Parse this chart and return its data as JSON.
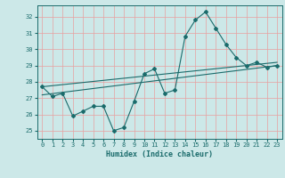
{
  "title": "",
  "xlabel": "Humidex (Indice chaleur)",
  "background_color": "#cce8e8",
  "grid_color": "#e8a0a0",
  "line_color": "#1a6b6b",
  "xlim": [
    -0.5,
    23.5
  ],
  "ylim": [
    24.5,
    32.7
  ],
  "yticks": [
    25,
    26,
    27,
    28,
    29,
    30,
    31,
    32
  ],
  "xticks": [
    0,
    1,
    2,
    3,
    4,
    5,
    6,
    7,
    8,
    9,
    10,
    11,
    12,
    13,
    14,
    15,
    16,
    17,
    18,
    19,
    20,
    21,
    22,
    23
  ],
  "line1_x": [
    0,
    1,
    2,
    3,
    4,
    5,
    6,
    7,
    8,
    9,
    10,
    11,
    12,
    13,
    14,
    15,
    16,
    17,
    18,
    19,
    20,
    21,
    22,
    23
  ],
  "line1_y": [
    27.7,
    27.1,
    27.3,
    25.9,
    26.2,
    26.5,
    26.5,
    25.0,
    25.2,
    26.8,
    28.5,
    28.8,
    27.3,
    27.5,
    30.8,
    31.8,
    32.3,
    31.3,
    30.3,
    29.5,
    29.0,
    29.2,
    28.9,
    29.0
  ],
  "line2_x": [
    0,
    23
  ],
  "line2_y": [
    27.7,
    29.2
  ],
  "line3_x": [
    0,
    23
  ],
  "line3_y": [
    27.2,
    29.0
  ]
}
